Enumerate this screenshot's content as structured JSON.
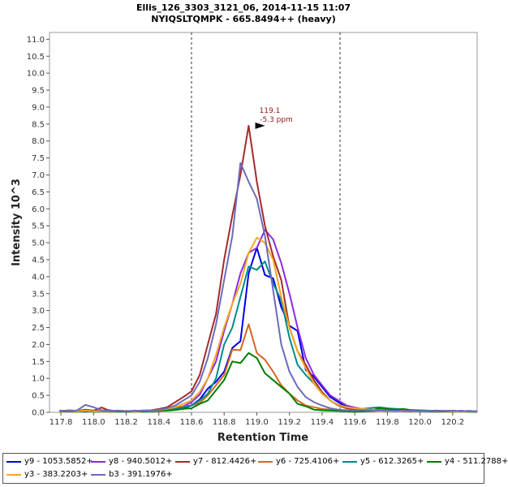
{
  "chart_data": {
    "type": "line",
    "title": "Ellis_126_3303_3121_06, 2014-11-15 11:07",
    "subtitle": "NYIQSLTQMPK - 665.8494++ (heavy)",
    "xlabel": "Retention Time",
    "ylabel": "Intensity 10^3",
    "xlim": [
      117.73,
      120.35
    ],
    "ylim": [
      0,
      11.2
    ],
    "x_ticks": [
      "117.8",
      "118.0",
      "118.2",
      "118.4",
      "118.6",
      "118.8",
      "119.0",
      "119.2",
      "119.4",
      "119.6",
      "119.8",
      "120.0",
      "120.2"
    ],
    "y_ticks": [
      "0.0",
      "0.5",
      "1.0",
      "1.5",
      "2.0",
      "2.5",
      "3.0",
      "3.5",
      "4.0",
      "4.5",
      "5.0",
      "5.5",
      "6.0",
      "6.5",
      "7.0",
      "7.5",
      "8.0",
      "8.5",
      "9.0",
      "9.5",
      "10.0",
      "10.5",
      "11.0"
    ],
    "boundaries": [
      118.6,
      119.51
    ],
    "annotation": {
      "x": 119.06,
      "y": 8.45,
      "line1": "119.1",
      "line2": "-5.3 ppm",
      "color": "#8b1a1a"
    },
    "x": [
      117.79,
      117.85,
      117.9,
      117.95,
      118.0,
      118.05,
      118.1,
      118.15,
      118.2,
      118.25,
      118.3,
      118.35,
      118.4,
      118.45,
      118.5,
      118.55,
      118.6,
      118.65,
      118.7,
      118.75,
      118.8,
      118.85,
      118.9,
      118.95,
      119.0,
      119.05,
      119.1,
      119.15,
      119.2,
      119.25,
      119.3,
      119.35,
      119.4,
      119.45,
      119.5,
      119.55,
      119.6,
      119.65,
      119.7,
      119.75,
      119.8,
      119.85,
      119.9,
      119.95,
      120.0,
      120.05,
      120.1,
      120.15,
      120.2,
      120.25,
      120.3,
      120.35
    ],
    "series": [
      {
        "name": "y9 - 1053.5852+",
        "color": "#0000e6",
        "values": [
          0.03,
          0.05,
          0.04,
          0.06,
          0.05,
          0.04,
          0.03,
          0.04,
          0.03,
          0.04,
          0.03,
          0.05,
          0.04,
          0.06,
          0.08,
          0.12,
          0.2,
          0.38,
          0.7,
          0.9,
          1.2,
          1.9,
          2.1,
          4.1,
          4.85,
          4.05,
          3.95,
          3.1,
          2.55,
          2.4,
          1.25,
          1.05,
          0.75,
          0.45,
          0.3,
          0.15,
          0.12,
          0.08,
          0.06,
          0.07,
          0.05,
          0.06,
          0.04,
          0.05,
          0.04,
          0.05,
          0.03,
          0.04,
          0.03,
          0.04,
          0.03,
          0.03
        ]
      },
      {
        "name": "y8 - 940.5012+",
        "color": "#8a2be2",
        "values": [
          0.05,
          0.03,
          0.04,
          0.03,
          0.05,
          0.04,
          0.06,
          0.03,
          0.04,
          0.03,
          0.05,
          0.04,
          0.06,
          0.08,
          0.1,
          0.18,
          0.3,
          0.52,
          1.0,
          1.5,
          2.4,
          3.2,
          4.1,
          4.7,
          4.85,
          5.38,
          5.1,
          4.4,
          3.5,
          2.5,
          1.6,
          1.1,
          0.8,
          0.5,
          0.35,
          0.2,
          0.14,
          0.1,
          0.08,
          0.06,
          0.05,
          0.04,
          0.05,
          0.03,
          0.04,
          0.03,
          0.05,
          0.04,
          0.03,
          0.04,
          0.03,
          0.03
        ]
      },
      {
        "name": "y7 - 812.4426+",
        "color": "#a52a2a",
        "values": [
          0.03,
          0.06,
          0.04,
          0.08,
          0.05,
          0.14,
          0.04,
          0.05,
          0.03,
          0.04,
          0.05,
          0.06,
          0.1,
          0.15,
          0.3,
          0.45,
          0.62,
          1.1,
          2.0,
          2.9,
          4.5,
          5.8,
          7.0,
          8.45,
          6.8,
          5.5,
          4.6,
          3.9,
          2.5,
          1.8,
          1.4,
          0.95,
          0.6,
          0.35,
          0.2,
          0.12,
          0.09,
          0.07,
          0.06,
          0.05,
          0.08,
          0.1,
          0.08,
          0.06,
          0.05,
          0.04,
          0.05,
          0.03,
          0.04,
          0.03,
          0.04,
          0.03
        ]
      },
      {
        "name": "y6 - 725.4106+",
        "color": "#d2691e",
        "values": [
          0.02,
          0.04,
          0.03,
          0.05,
          0.03,
          0.04,
          0.02,
          0.03,
          0.04,
          0.02,
          0.03,
          0.04,
          0.05,
          0.08,
          0.12,
          0.18,
          0.2,
          0.28,
          0.5,
          0.8,
          1.1,
          1.85,
          1.83,
          2.6,
          1.75,
          1.55,
          1.2,
          0.8,
          0.55,
          0.35,
          0.2,
          0.15,
          0.1,
          0.08,
          0.07,
          0.06,
          0.05,
          0.04,
          0.03,
          0.05,
          0.04,
          0.06,
          0.05,
          0.04,
          0.06,
          0.04,
          0.03,
          0.04,
          0.02,
          0.03,
          0.02,
          0.02
        ]
      },
      {
        "name": "y5 - 612.3265+",
        "color": "#008b8b",
        "values": [
          0.02,
          0.04,
          0.03,
          0.02,
          0.04,
          0.03,
          0.02,
          0.04,
          0.03,
          0.02,
          0.03,
          0.04,
          0.05,
          0.07,
          0.1,
          0.15,
          0.2,
          0.35,
          0.55,
          1.0,
          2.0,
          2.5,
          3.4,
          4.3,
          4.2,
          4.45,
          3.8,
          3.3,
          2.2,
          1.4,
          1.1,
          0.85,
          0.55,
          0.35,
          0.22,
          0.15,
          0.12,
          0.1,
          0.13,
          0.15,
          0.12,
          0.1,
          0.08,
          0.07,
          0.06,
          0.05,
          0.04,
          0.03,
          0.04,
          0.03,
          0.02,
          0.02
        ]
      },
      {
        "name": "y4 - 511.2788+",
        "color": "#008000",
        "values": [
          0.02,
          0.03,
          0.02,
          0.04,
          0.02,
          0.03,
          0.02,
          0.03,
          0.02,
          0.03,
          0.02,
          0.03,
          0.04,
          0.05,
          0.07,
          0.1,
          0.12,
          0.25,
          0.35,
          0.65,
          0.95,
          1.5,
          1.45,
          1.75,
          1.6,
          1.15,
          0.95,
          0.75,
          0.55,
          0.25,
          0.18,
          0.08,
          0.06,
          0.05,
          0.04,
          0.03,
          0.02,
          0.03,
          0.05,
          0.12,
          0.1,
          0.08,
          0.1,
          0.06,
          0.04,
          0.03,
          0.02,
          0.03,
          0.02,
          0.03,
          0.02,
          0.02
        ]
      },
      {
        "name": "y3 - 383.2203+",
        "color": "#f5a623",
        "values": [
          0.03,
          0.04,
          0.03,
          0.05,
          0.03,
          0.04,
          0.03,
          0.05,
          0.04,
          0.03,
          0.04,
          0.05,
          0.07,
          0.1,
          0.15,
          0.25,
          0.35,
          0.6,
          1.0,
          1.7,
          2.5,
          3.2,
          3.8,
          4.7,
          5.15,
          5.0,
          4.5,
          3.4,
          2.5,
          1.8,
          1.3,
          0.85,
          0.55,
          0.35,
          0.22,
          0.15,
          0.12,
          0.1,
          0.08,
          0.06,
          0.05,
          0.04,
          0.05,
          0.04,
          0.03,
          0.04,
          0.03,
          0.04,
          0.03,
          0.02,
          0.03,
          0.03
        ]
      },
      {
        "name": "b3 - 391.1976+",
        "color": "#6b6bbd",
        "values": [
          0.05,
          0.03,
          0.06,
          0.22,
          0.15,
          0.06,
          0.04,
          0.05,
          0.03,
          0.05,
          0.04,
          0.06,
          0.08,
          0.12,
          0.2,
          0.35,
          0.5,
          0.9,
          1.6,
          2.6,
          3.9,
          5.2,
          7.35,
          6.8,
          6.3,
          5.2,
          3.6,
          2.0,
          1.2,
          0.75,
          0.45,
          0.3,
          0.2,
          0.12,
          0.08,
          0.06,
          0.05,
          0.07,
          0.06,
          0.05,
          0.04,
          0.05,
          0.04,
          0.05,
          0.03,
          0.04,
          0.03,
          0.04,
          0.05,
          0.03,
          0.04,
          0.03
        ]
      }
    ]
  }
}
